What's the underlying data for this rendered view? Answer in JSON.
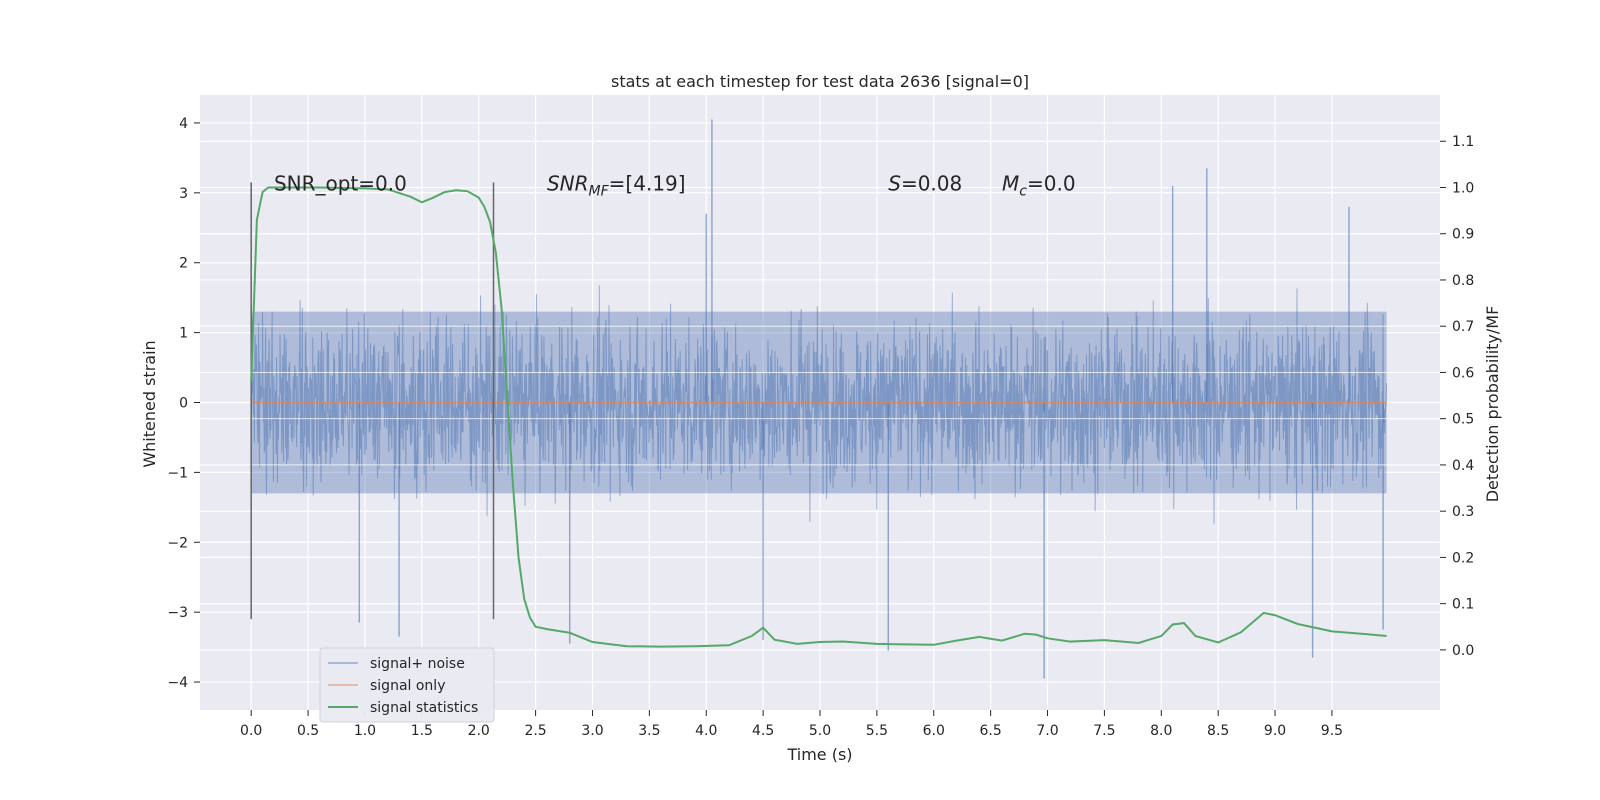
{
  "chart_data": {
    "type": "line",
    "title": "stats at each timestep for test data 2636 [signal=0]",
    "xlabel": "Time (s)",
    "ylabel_left": "Whitened strain",
    "ylabel_right": "Detection probability/MF",
    "xlim": [
      -0.45,
      10.45
    ],
    "ylim_left": [
      -4.4,
      4.4
    ],
    "ylim_right": [
      -0.13,
      1.2
    ],
    "x_ticks": [
      0.0,
      0.5,
      1.0,
      1.5,
      2.0,
      2.5,
      3.0,
      3.5,
      4.0,
      4.5,
      5.0,
      5.5,
      6.0,
      6.5,
      7.0,
      7.5,
      8.0,
      8.5,
      9.0,
      9.5
    ],
    "x_tick_labels": [
      "0.0",
      "0.5",
      "1.0",
      "1.5",
      "2.0",
      "2.5",
      "3.0",
      "3.5",
      "4.0",
      "4.5",
      "5.0",
      "5.5",
      "6.0",
      "6.5",
      "7.0",
      "7.5",
      "8.0",
      "8.5",
      "9.0",
      "9.5"
    ],
    "y_left_ticks": [
      4,
      3,
      2,
      1,
      0,
      -1,
      -2,
      -3,
      -4
    ],
    "y_left_tick_labels": [
      "4",
      "3",
      "2",
      "1",
      "0",
      "−1",
      "−2",
      "−3",
      "−4"
    ],
    "y_right_ticks": [
      1.1,
      1.0,
      0.9,
      0.8,
      0.7,
      0.6,
      0.5,
      0.4,
      0.3,
      0.2,
      0.1,
      0.0
    ],
    "y_right_tick_labels": [
      "1.1",
      "1.0",
      "0.9",
      "0.8",
      "0.7",
      "0.6",
      "0.5",
      "0.4",
      "0.3",
      "0.2",
      "0.1",
      "0.0"
    ],
    "grid": true,
    "legend_position": "lower-left",
    "series": [
      {
        "name": "signal+ noise",
        "axis": "left",
        "color": "#4c72b0",
        "kind": "dense-noise",
        "x_range": [
          0.0,
          9.98
        ],
        "core_amplitude": 1.3,
        "typical_peak_range": [
          -2.3,
          2.4
        ],
        "notable_extremes": [
          {
            "x": 4.05,
            "y": 4.05
          },
          {
            "x": 8.4,
            "y": 3.35
          },
          {
            "x": 8.1,
            "y": 3.1
          },
          {
            "x": 9.65,
            "y": 2.8
          },
          {
            "x": 4.0,
            "y": 2.7
          },
          {
            "x": 1.3,
            "y": -3.35
          },
          {
            "x": 2.8,
            "y": -3.45
          },
          {
            "x": 5.6,
            "y": -3.55
          },
          {
            "x": 6.97,
            "y": -3.95
          },
          {
            "x": 9.33,
            "y": -3.65
          },
          {
            "x": 4.5,
            "y": -3.4
          },
          {
            "x": 0.95,
            "y": -3.15
          },
          {
            "x": 9.95,
            "y": -3.25
          }
        ]
      },
      {
        "name": "signal only",
        "axis": "left",
        "color": "#dd8452",
        "x": [
          0.0,
          9.98
        ],
        "y": [
          0.0,
          0.0
        ]
      },
      {
        "name": "signal statistics",
        "axis": "right",
        "color": "#55a868",
        "x": [
          0.0,
          0.05,
          0.1,
          0.15,
          0.25,
          0.4,
          0.6,
          0.8,
          1.0,
          1.2,
          1.4,
          1.5,
          1.6,
          1.7,
          1.8,
          1.9,
          2.0,
          2.05,
          2.1,
          2.15,
          2.2,
          2.25,
          2.3,
          2.35,
          2.4,
          2.45,
          2.5,
          2.6,
          2.8,
          3.0,
          3.3,
          3.6,
          3.9,
          4.2,
          4.4,
          4.5,
          4.6,
          4.8,
          5.0,
          5.2,
          5.5,
          6.0,
          6.2,
          6.4,
          6.6,
          6.8,
          6.9,
          7.0,
          7.2,
          7.5,
          7.8,
          8.0,
          8.1,
          8.2,
          8.3,
          8.5,
          8.7,
          8.9,
          9.0,
          9.2,
          9.5,
          9.8,
          9.98
        ],
        "y": [
          0.58,
          0.93,
          0.99,
          1.0,
          1.0,
          1.0,
          1.0,
          0.999,
          0.998,
          0.996,
          0.98,
          0.968,
          0.978,
          0.99,
          0.994,
          0.992,
          0.978,
          0.958,
          0.925,
          0.86,
          0.74,
          0.55,
          0.36,
          0.2,
          0.11,
          0.07,
          0.05,
          0.045,
          0.037,
          0.017,
          0.008,
          0.007,
          0.008,
          0.01,
          0.03,
          0.048,
          0.022,
          0.013,
          0.017,
          0.018,
          0.013,
          0.011,
          0.02,
          0.028,
          0.02,
          0.035,
          0.033,
          0.025,
          0.018,
          0.021,
          0.015,
          0.03,
          0.055,
          0.058,
          0.03,
          0.016,
          0.038,
          0.08,
          0.075,
          0.056,
          0.04,
          0.034,
          0.03
        ]
      }
    ],
    "vertical_lines": [
      {
        "x": 0.0,
        "ymin": -3.1,
        "ymax": 3.15
      },
      {
        "x": 2.13,
        "ymin": -3.1,
        "ymax": 3.15
      }
    ],
    "annotations": [
      {
        "text": "SNR_opt=0.0",
        "x": 0.2,
        "y": 3.15,
        "italic": false
      },
      {
        "text": "SNR",
        "sub": "MF",
        "after": "=[4.19]",
        "x": 2.6,
        "y": 3.15,
        "italic": true
      },
      {
        "text": "S",
        "after": "=0.08",
        "x": 5.6,
        "y": 3.15,
        "italic": true
      },
      {
        "text": "M",
        "sub": "c",
        "after": "=0.0",
        "x": 6.6,
        "y": 3.15,
        "italic": true
      }
    ],
    "colors": {
      "plot_background": "#eaeaf2",
      "grid": "#ffffff",
      "text": "#262626",
      "vline": "#666666"
    }
  }
}
